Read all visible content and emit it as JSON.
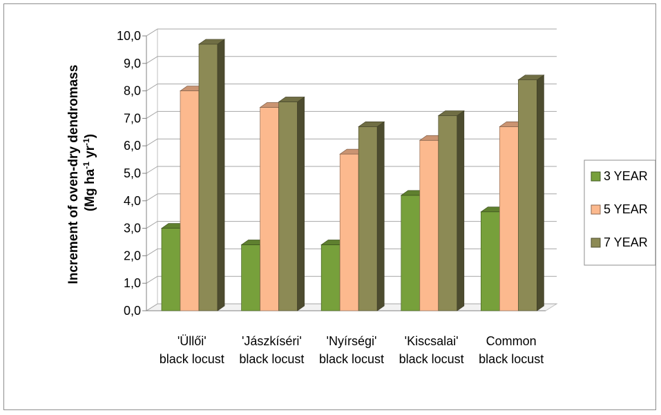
{
  "chart_data": {
    "type": "bar",
    "categories": [
      [
        "'Üllői'",
        "black locust"
      ],
      [
        "'Jászkíséri'",
        "black locust"
      ],
      [
        "'Nyírségi'",
        "black locust"
      ],
      [
        "'Kiscsalai'",
        "black locust"
      ],
      [
        "Common",
        "black locust"
      ]
    ],
    "series": [
      {
        "name": "3 YEAR",
        "values": [
          3.0,
          2.4,
          2.4,
          4.2,
          3.6
        ],
        "color": "#77a03b"
      },
      {
        "name": "5 YEAR",
        "values": [
          8.0,
          7.4,
          5.7,
          6.2,
          6.7
        ],
        "color": "#fcb98e"
      },
      {
        "name": "7 YEAR",
        "values": [
          9.7,
          7.6,
          6.7,
          7.1,
          8.4
        ],
        "color": "#8c8a55"
      }
    ],
    "ylabel_line1": "Increment of oven-dry dendromass",
    "ylabel_line2_prefix": "(Mg ha",
    "ylabel_sup1": "-1",
    "ylabel_mid": " yr",
    "ylabel_sup2": "-1",
    "ylabel_suffix": ")",
    "ylim": [
      0,
      10
    ],
    "yticks": [
      "0,0",
      "1,0",
      "2,0",
      "3,0",
      "4,0",
      "5,0",
      "6,0",
      "7,0",
      "8,0",
      "9,0",
      "10,0"
    ],
    "grid": true,
    "legend_position": "right",
    "projection": "3d"
  }
}
